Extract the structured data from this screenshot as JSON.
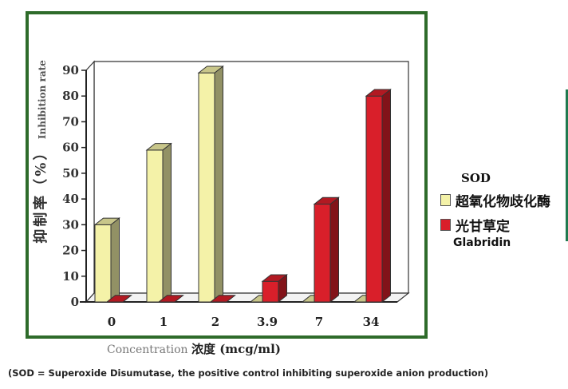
{
  "chart_data": {
    "type": "bar",
    "categories": [
      "0",
      "1",
      "2",
      "3.9",
      "7",
      "34"
    ],
    "series": [
      {
        "name": "SOD 超氧化物歧化酶",
        "color": "#f4f2a8",
        "values": [
          30,
          59,
          89,
          0,
          0,
          0
        ]
      },
      {
        "name": "光甘草定 Glabridin",
        "color": "#d91f2a",
        "values": [
          0,
          0,
          0,
          8,
          38,
          80
        ]
      }
    ],
    "ylim": [
      0,
      90
    ],
    "yticks": [
      0,
      10,
      20,
      30,
      40,
      50,
      60,
      70,
      80,
      90
    ],
    "ylabel_cn": "抑制率（%）",
    "ylabel_en": "Inhibition rate",
    "xlabel_en": "Concentration",
    "xlabel_cn": "浓度 (mcg/ml)",
    "legend_position": "right"
  },
  "legend": {
    "sod_label": "SOD",
    "sod_cn": "超氧化物歧化酶",
    "glabridin_cn": "光甘草定",
    "glabridin_label": "Glabridin"
  },
  "footnote": "(SOD = Superoxide Disumutase, the positive control inhibiting superoxide anion production)"
}
